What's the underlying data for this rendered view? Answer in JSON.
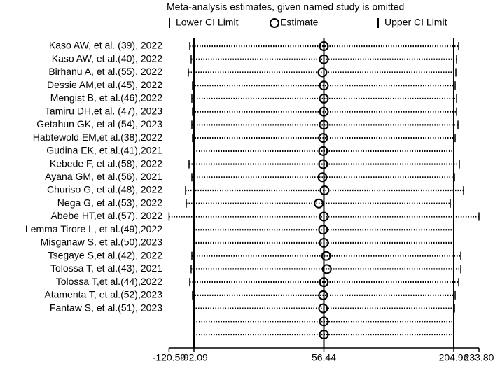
{
  "chart_data": {
    "type": "sensitivity",
    "title": "Meta-analysis estimates, given named study is omitted",
    "categories": [
      "Kaso AW, et al. (39), 2022",
      "Kaso AW, et al.(40), 2022",
      "Birhanu A, et al.(55), 2022",
      "Dessie AM,et al.(45), 2022",
      "Mengist B, et al.(46),2022",
      "Tamiru DH,et al. (47), 2023",
      "Getahun GK, et al (54), 2023",
      "Habtewold EM,et al.(38),2022",
      "Gudina EK, et al.(41),2021",
      "Kebede F, et al.(58), 2022",
      "Ayana GM, et al.(56), 2021",
      "Churiso G, et al.(48), 2022",
      "Nega G, et al.(53), 2022",
      "Abebe HT,et al.(57), 2022",
      "Lemma Tirore L, et al.(49),2022",
      "Misganaw S, et al.(50),2023",
      "Tsegaye S,et al.(42), 2022",
      "Tolossa T, et al.(43), 2021",
      "Tolossa T,et al.(44),2022",
      "Atamenta T, et al.(52),2023",
      "Fantaw S, et al.(51), 2023",
      null,
      null
    ],
    "series": [
      {
        "name": "Lower CI Limit",
        "color": "#000000",
        "values": [
          -96.9,
          -95.3,
          -98.5,
          -93.7,
          -94.5,
          -93.7,
          -94.5,
          -93.7,
          -92.1,
          -97.7,
          -94.5,
          -101.7,
          -100.9,
          -120.59,
          -92.9,
          -92.9,
          -94.5,
          -95.3,
          -96.9,
          -93.7,
          -92.9,
          -92.09,
          -92.09
        ]
      },
      {
        "name": "Estimate",
        "color": "#000000",
        "values": [
          56.4,
          56.4,
          54.8,
          56.4,
          56.4,
          56.4,
          56.4,
          55.6,
          55.6,
          55.6,
          54.8,
          57.2,
          50.6,
          56.4,
          55.6,
          56.4,
          59.0,
          59.8,
          56.4,
          55.6,
          55.6,
          56.44,
          56.44
        ]
      },
      {
        "name": "Upper CI Limit",
        "color": "#000000",
        "values": [
          210.6,
          208.2,
          207.4,
          206.6,
          208.2,
          208.2,
          209.8,
          206.6,
          205.0,
          211.4,
          205.8,
          216.2,
          201.0,
          233.8,
          205.0,
          205.0,
          213.0,
          213.0,
          210.6,
          206.6,
          205.8,
          204.96,
          204.96
        ]
      }
    ],
    "reflines": [
      -92.09,
      56.44,
      204.96
    ],
    "xlim": [
      -120.59,
      233.8
    ],
    "xticks": [
      -120.59,
      -92.09,
      56.44,
      204.96,
      {
        "value": 233.8,
        "label": "233.80"
      }
    ]
  }
}
